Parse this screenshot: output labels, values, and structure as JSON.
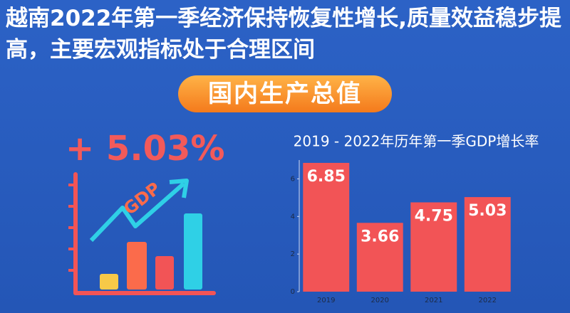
{
  "header": {
    "title": "越南2022年第一季经济保持恢复性增长,质量效益稳步提高，主要宏观指标处于合理区间"
  },
  "badge": "国内生产总值",
  "highlight": "+ 5.03%",
  "icon_label": "GDP",
  "chart_data": {
    "type": "bar",
    "title": "2019 - 2022年历年第一季GDP增长率",
    "categories": [
      "2019",
      "2020",
      "2021",
      "2022"
    ],
    "values": [
      6.85,
      3.66,
      4.75,
      5.03
    ],
    "color": "#f25456",
    "ylim": [
      0,
      7
    ],
    "yticks": [
      0,
      2,
      4,
      6
    ],
    "grid": false
  }
}
